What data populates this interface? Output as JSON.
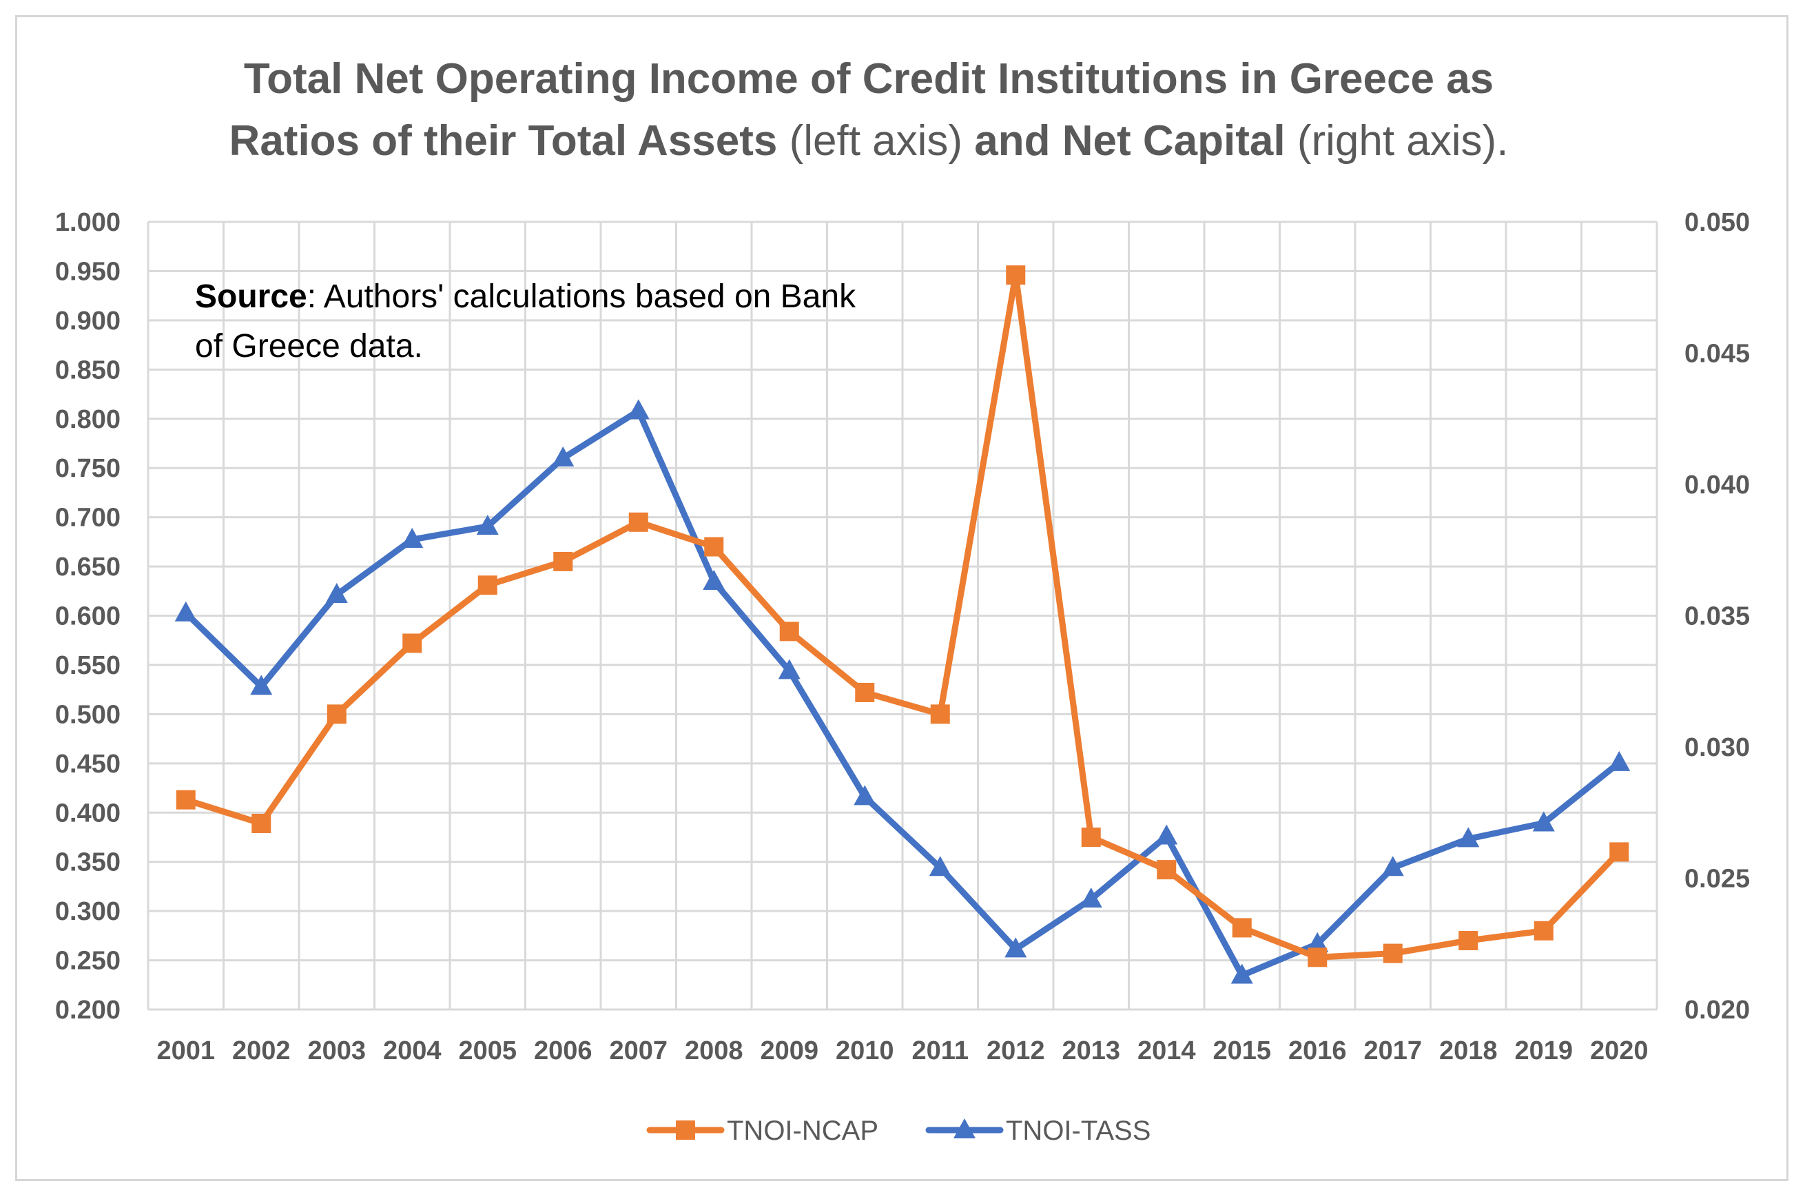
{
  "chart_data": {
    "type": "line",
    "title_line1": "Total Net Operating Income of Credit Institutions in Greece as",
    "title_line2_bold_a": "Ratios of their Total Assets",
    "title_line2_normal_a": " (left axis) ",
    "title_line2_bold_b": "and Net Capital",
    "title_line2_normal_b": " (right axis).",
    "annotation": {
      "bold": "Source",
      "line1_rest": ": Authors' calculations based on Bank",
      "line2": "of Greece data."
    },
    "categories": [
      "2001",
      "2002",
      "2003",
      "2004",
      "2005",
      "2006",
      "2007",
      "2008",
      "2009",
      "2010",
      "2011",
      "2012",
      "2013",
      "2014",
      "2015",
      "2016",
      "2017",
      "2018",
      "2019",
      "2020"
    ],
    "y_left": {
      "min": 0.2,
      "max": 1.0,
      "step": 0.05,
      "tick_labels": [
        "0.200",
        "0.250",
        "0.300",
        "0.350",
        "0.400",
        "0.450",
        "0.500",
        "0.550",
        "0.600",
        "0.650",
        "0.700",
        "0.750",
        "0.800",
        "0.850",
        "0.900",
        "0.950",
        "1.000"
      ]
    },
    "y_right": {
      "min": 0.02,
      "max": 0.05,
      "step": 0.005,
      "tick_labels": [
        "0.020",
        "0.025",
        "0.030",
        "0.035",
        "0.040",
        "0.045",
        "0.050"
      ]
    },
    "grid": true,
    "legend_position": "bottom",
    "series": [
      {
        "name": "TNOI-NCAP",
        "axis": "left",
        "color": "#ED7D31",
        "marker": "square",
        "values": [
          0.413,
          0.389,
          0.5,
          0.572,
          0.631,
          0.655,
          0.695,
          0.67,
          0.584,
          0.522,
          0.5,
          0.946,
          0.375,
          0.342,
          0.283,
          0.253,
          0.257,
          0.27,
          0.28,
          0.36
        ]
      },
      {
        "name": "TNOI-TASS",
        "axis": "right",
        "color": "#4472C4",
        "marker": "triangle",
        "values": [
          0.0351,
          0.0323,
          0.0358,
          0.0379,
          0.0384,
          0.041,
          0.0428,
          0.0363,
          0.0329,
          0.0281,
          0.0254,
          0.0223,
          0.0242,
          0.0266,
          0.0213,
          0.0225,
          0.0254,
          0.0265,
          0.0271,
          0.0294
        ]
      }
    ]
  }
}
